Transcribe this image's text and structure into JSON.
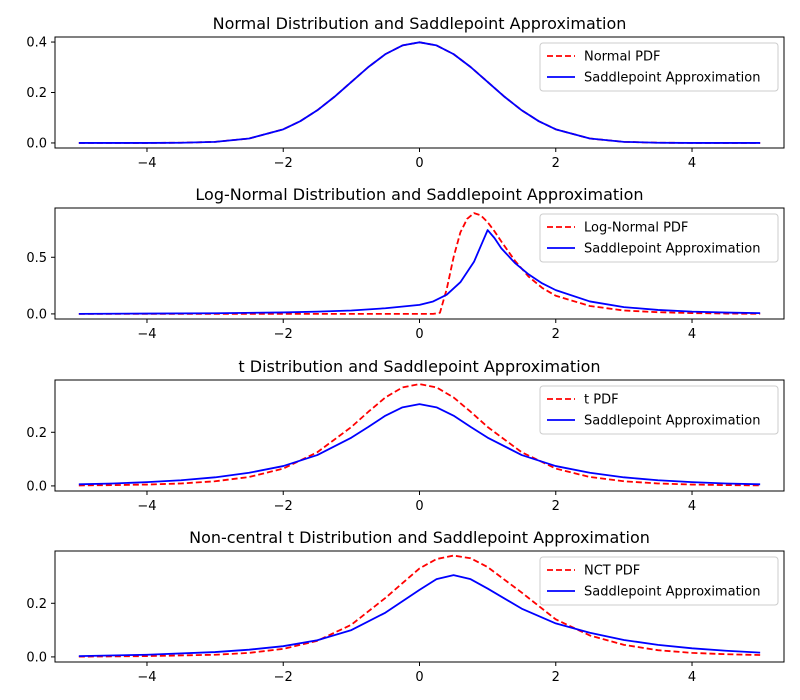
{
  "chart_data": [
    {
      "type": "line",
      "title": "Normal Distribution and Saddlepoint Approximation",
      "xlabel": "",
      "ylabel": "",
      "xlim": [
        -5.35,
        5.35
      ],
      "ylim": [
        -0.02,
        0.42
      ],
      "xticks": [
        -4,
        -2,
        0,
        2,
        4
      ],
      "xtick_labels": [
        "−4",
        "−2",
        "0",
        "2",
        "4"
      ],
      "yticks": [
        0.0,
        0.2,
        0.4
      ],
      "ytick_labels": [
        "0.0",
        "0.2",
        "0.4"
      ],
      "legend": "top-right",
      "grid": false,
      "series": [
        {
          "name": "Normal PDF",
          "color": "#ff0000",
          "style": "dashed",
          "x": [
            -5,
            -4.5,
            -4,
            -3.5,
            -3,
            -2.5,
            -2,
            -1.75,
            -1.5,
            -1.25,
            -1,
            -0.75,
            -0.5,
            -0.25,
            0,
            0.25,
            0.5,
            0.75,
            1,
            1.25,
            1.5,
            1.75,
            2,
            2.5,
            3,
            3.5,
            4,
            4.5,
            5
          ],
          "y": [
            0.0,
            0.0,
            0.0001,
            0.0009,
            0.0044,
            0.0175,
            0.054,
            0.0863,
            0.1295,
            0.1826,
            0.242,
            0.3011,
            0.3521,
            0.3867,
            0.3989,
            0.3867,
            0.3521,
            0.3011,
            0.242,
            0.1826,
            0.1295,
            0.0863,
            0.054,
            0.0175,
            0.0044,
            0.0009,
            0.0001,
            0.0,
            0.0
          ]
        },
        {
          "name": "Saddlepoint Approximation",
          "color": "#0000ff",
          "style": "solid",
          "x": [
            -5,
            -4.5,
            -4,
            -3.5,
            -3,
            -2.5,
            -2,
            -1.75,
            -1.5,
            -1.25,
            -1,
            -0.75,
            -0.5,
            -0.25,
            0,
            0.25,
            0.5,
            0.75,
            1,
            1.25,
            1.5,
            1.75,
            2,
            2.5,
            3,
            3.5,
            4,
            4.5,
            5
          ],
          "y": [
            0.0,
            0.0,
            0.0001,
            0.0009,
            0.0044,
            0.0175,
            0.054,
            0.0863,
            0.1295,
            0.1826,
            0.242,
            0.3011,
            0.3521,
            0.3867,
            0.3989,
            0.3867,
            0.3521,
            0.3011,
            0.242,
            0.1826,
            0.1295,
            0.0863,
            0.054,
            0.0175,
            0.0044,
            0.0009,
            0.0001,
            0.0,
            0.0
          ]
        }
      ]
    },
    {
      "type": "line",
      "title": "Log-Normal Distribution and Saddlepoint Approximation",
      "xlabel": "",
      "ylabel": "",
      "xlim": [
        -5.35,
        5.35
      ],
      "ylim": [
        -0.045,
        0.935
      ],
      "xticks": [
        -4,
        -2,
        0,
        2,
        4
      ],
      "xtick_labels": [
        "−4",
        "−2",
        "0",
        "2",
        "4"
      ],
      "yticks": [
        0.0,
        0.5
      ],
      "ytick_labels": [
        "0.0",
        "0.5"
      ],
      "legend": "top-right",
      "grid": false,
      "series": [
        {
          "name": "Log-Normal PDF",
          "color": "#ff0000",
          "style": "dashed",
          "x": [
            -5,
            -4,
            -3,
            -2,
            -1,
            0,
            0.2,
            0.3,
            0.4,
            0.5,
            0.6,
            0.7,
            0.8,
            0.9,
            1.0,
            1.1,
            1.2,
            1.4,
            1.6,
            1.8,
            2.0,
            2.5,
            3.0,
            3.5,
            4.0,
            4.5,
            5.0
          ],
          "y": [
            0,
            0,
            0,
            0,
            0,
            0,
            0.0,
            0.01,
            0.22,
            0.5,
            0.72,
            0.84,
            0.89,
            0.87,
            0.81,
            0.73,
            0.64,
            0.47,
            0.33,
            0.23,
            0.16,
            0.07,
            0.03,
            0.015,
            0.007,
            0.003,
            0.001
          ]
        },
        {
          "name": "Saddlepoint Approximation",
          "color": "#0000ff",
          "style": "solid",
          "x": [
            -5,
            -4,
            -3,
            -2,
            -1.5,
            -1,
            -0.5,
            0,
            0.2,
            0.4,
            0.6,
            0.8,
            0.9,
            1.0,
            1.1,
            1.2,
            1.4,
            1.6,
            1.8,
            2.0,
            2.5,
            3.0,
            3.5,
            4.0,
            4.5,
            5.0
          ],
          "y": [
            0.0,
            0.003,
            0.006,
            0.013,
            0.02,
            0.03,
            0.05,
            0.08,
            0.11,
            0.17,
            0.28,
            0.46,
            0.6,
            0.74,
            0.67,
            0.58,
            0.45,
            0.35,
            0.27,
            0.21,
            0.11,
            0.06,
            0.035,
            0.02,
            0.012,
            0.007
          ]
        }
      ]
    },
    {
      "type": "line",
      "title": "t Distribution and Saddlepoint Approximation",
      "xlabel": "",
      "ylabel": "",
      "xlim": [
        -5.35,
        5.35
      ],
      "ylim": [
        -0.019,
        0.395
      ],
      "xticks": [
        -4,
        -2,
        0,
        2,
        4
      ],
      "xtick_labels": [
        "−4",
        "−2",
        "0",
        "2",
        "4"
      ],
      "yticks": [
        0.0,
        0.2
      ],
      "ytick_labels": [
        "0.0",
        "0.2"
      ],
      "legend": "top-right",
      "grid": false,
      "series": [
        {
          "name": "t PDF",
          "color": "#ff0000",
          "style": "dashed",
          "x": [
            -5,
            -4.5,
            -4,
            -3.5,
            -3,
            -2.5,
            -2,
            -1.5,
            -1,
            -0.75,
            -0.5,
            -0.25,
            0,
            0.25,
            0.5,
            0.75,
            1,
            1.5,
            2,
            2.5,
            3,
            3.5,
            4,
            4.5,
            5
          ],
          "y": [
            0.0018,
            0.003,
            0.0051,
            0.0091,
            0.0173,
            0.0332,
            0.0646,
            0.1255,
            0.2197,
            0.2766,
            0.33,
            0.3674,
            0.3796,
            0.3674,
            0.33,
            0.2766,
            0.2197,
            0.1255,
            0.0646,
            0.0332,
            0.0173,
            0.0091,
            0.0051,
            0.003,
            0.0018
          ]
        },
        {
          "name": "Saddlepoint Approximation",
          "color": "#0000ff",
          "style": "solid",
          "x": [
            -5,
            -4.5,
            -4,
            -3.5,
            -3,
            -2.5,
            -2,
            -1.5,
            -1,
            -0.75,
            -0.5,
            -0.25,
            0,
            0.25,
            0.5,
            0.75,
            1,
            1.5,
            2,
            2.5,
            3,
            3.5,
            4,
            4.5,
            5
          ],
          "y": [
            0.006,
            0.009,
            0.014,
            0.021,
            0.032,
            0.049,
            0.074,
            0.115,
            0.18,
            0.22,
            0.262,
            0.293,
            0.305,
            0.293,
            0.262,
            0.22,
            0.18,
            0.115,
            0.074,
            0.049,
            0.032,
            0.021,
            0.014,
            0.009,
            0.006
          ]
        }
      ]
    },
    {
      "type": "line",
      "title": "Non-central t Distribution and Saddlepoint Approximation",
      "xlabel": "",
      "ylabel": "",
      "xlim": [
        -5.35,
        5.35
      ],
      "ylim": [
        -0.019,
        0.395
      ],
      "xticks": [
        -4,
        -2,
        0,
        2,
        4
      ],
      "xtick_labels": [
        "−4",
        "−2",
        "0",
        "2",
        "4"
      ],
      "yticks": [
        0.0,
        0.2
      ],
      "ytick_labels": [
        "0.0",
        "0.2"
      ],
      "legend": "top-right",
      "grid": false,
      "series": [
        {
          "name": "NCT PDF",
          "color": "#ff0000",
          "style": "dashed",
          "x": [
            -5,
            -4,
            -3,
            -2.5,
            -2,
            -1.5,
            -1,
            -0.5,
            0,
            0.25,
            0.5,
            0.75,
            1,
            1.5,
            2,
            2.5,
            3,
            3.5,
            4,
            4.5,
            5
          ],
          "y": [
            0.001,
            0.003,
            0.008,
            0.015,
            0.03,
            0.06,
            0.12,
            0.22,
            0.33,
            0.365,
            0.378,
            0.368,
            0.335,
            0.24,
            0.14,
            0.08,
            0.045,
            0.025,
            0.015,
            0.01,
            0.007
          ]
        },
        {
          "name": "Saddlepoint Approximation",
          "color": "#0000ff",
          "style": "solid",
          "x": [
            -5,
            -4,
            -3,
            -2.5,
            -2,
            -1.5,
            -1,
            -0.5,
            0,
            0.25,
            0.5,
            0.75,
            1,
            1.5,
            2,
            2.5,
            3,
            3.5,
            4,
            4.5,
            5
          ],
          "y": [
            0.003,
            0.008,
            0.018,
            0.027,
            0.04,
            0.062,
            0.1,
            0.165,
            0.25,
            0.29,
            0.305,
            0.29,
            0.255,
            0.18,
            0.125,
            0.09,
            0.063,
            0.045,
            0.032,
            0.023,
            0.016
          ]
        }
      ]
    }
  ]
}
